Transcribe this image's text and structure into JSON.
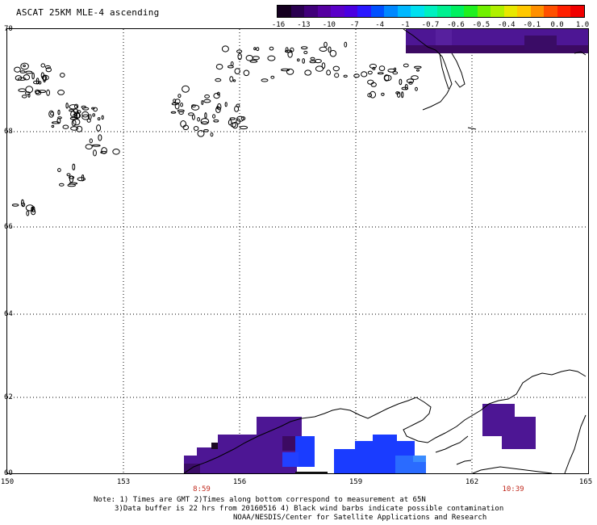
{
  "title": "ASCAT 25KM MLE-4 ascending",
  "colorbar": {
    "tick_labels": [
      "-16",
      "-13",
      "-10",
      "-7",
      "-4",
      "-1",
      "-0.7",
      "-0.6",
      "-0.5",
      "-0.4",
      "-0.1",
      "0.0",
      "1.0"
    ],
    "colors": [
      "#150020",
      "#2a0050",
      "#40007a",
      "#5500a0",
      "#5a00c8",
      "#4a00e0",
      "#2a18ff",
      "#0050ff",
      "#0088ff",
      "#00b8ff",
      "#00e0f0",
      "#00f0c0",
      "#00f090",
      "#00f060",
      "#20f020",
      "#70f000",
      "#b0f000",
      "#e8e800",
      "#ffc800",
      "#ff9000",
      "#ff5000",
      "#ff2000",
      "#f00000"
    ]
  },
  "map": {
    "lat_labels": [
      "70",
      "68",
      "66",
      "64",
      "62",
      "60"
    ],
    "lon_labels": [
      "150",
      "153",
      "156",
      "159",
      "162",
      "165"
    ],
    "time_labels": [
      "8:59",
      "10:39"
    ]
  },
  "colors": {
    "dark_purple": "#3c0a62",
    "purple": "#4d1694",
    "blue": "#1a3cff",
    "light_blue": "#2a6bff",
    "time_label": "#c0281c"
  },
  "notes": [
    "Note: 1) Times are GMT 2)Times along bottom correspond to measurement at 65N",
    "3)Data buffer is 22 hrs from 20160516 4) Black wind barbs indicate possible contamination",
    "NOAA/NESDIS/Center for Satellite Applications and Research"
  ]
}
